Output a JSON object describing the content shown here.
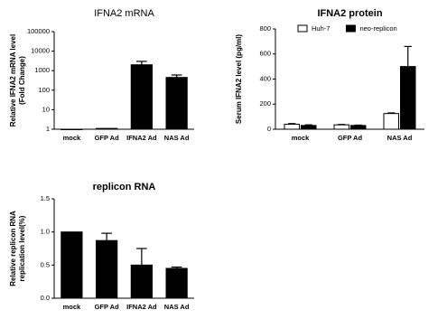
{
  "chart_data": [
    {
      "type": "bar",
      "title": "IFNA2 mRNA",
      "ylabel": [
        "Relative IFNA2 mRNA level",
        "(Fold Change)"
      ],
      "categories": [
        "mock",
        "GFP Ad",
        "IFNA2 Ad",
        "NAS Ad"
      ],
      "values": [
        1,
        1.1,
        2000,
        450
      ],
      "errors": [
        0,
        0,
        1000,
        150
      ],
      "color": "#000000",
      "log_scale": true,
      "ylim": [
        1,
        100000
      ],
      "yticks": [
        1,
        10,
        100,
        1000,
        10000,
        100000
      ]
    },
    {
      "type": "bar",
      "title": "IFNA2 protein",
      "ylabel": [
        "Serum IFNA2 level (pg/ml)"
      ],
      "categories": [
        "mock",
        "GFP Ad",
        "NAS Ad"
      ],
      "series": [
        {
          "name": "Huh-7",
          "color": "#ffffff",
          "values": [
            40,
            35,
            125
          ],
          "errors": [
            5,
            3,
            5
          ]
        },
        {
          "name": "neo-replicon",
          "color": "#000000",
          "values": [
            30,
            30,
            500
          ],
          "errors": [
            5,
            3,
            160
          ]
        }
      ],
      "legend": "top",
      "ylim": [
        0,
        800
      ],
      "yticks": [
        0,
        200,
        400,
        600,
        800
      ]
    },
    {
      "type": "bar",
      "title": "replicon RNA",
      "ylabel": [
        "Relative replicon RNA",
        "replication level(%)"
      ],
      "categories": [
        "mock",
        "GFP Ad",
        "IFNA2 Ad",
        "NAS Ad"
      ],
      "values": [
        1.0,
        0.87,
        0.5,
        0.45
      ],
      "errors": [
        0,
        0.11,
        0.25,
        0.02
      ],
      "color": "#000000",
      "ylim": [
        0,
        1.5
      ],
      "yticks": [
        {
          "value": 0,
          "label": "0.0"
        },
        0.5,
        {
          "value": 1,
          "label": "1.0"
        },
        1.5
      ]
    }
  ]
}
